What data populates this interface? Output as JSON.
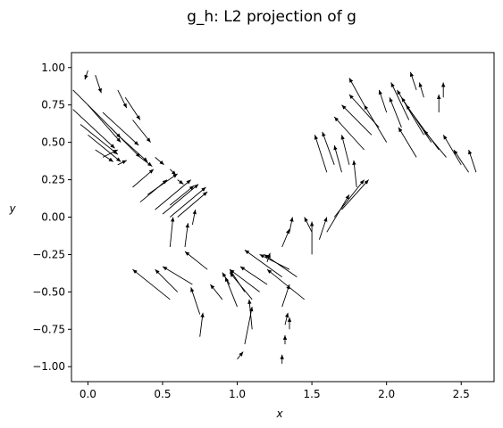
{
  "chart_data": {
    "type": "quiver",
    "title": "g_h: L2 projection of g",
    "xlabel": "x",
    "ylabel": "y",
    "xlim": [
      -0.11,
      2.72
    ],
    "ylim": [
      -1.1,
      1.1
    ],
    "xticks": [
      0.0,
      0.5,
      1.0,
      1.5,
      2.0,
      2.5
    ],
    "xtick_labels": [
      "0.0",
      "0.5",
      "1.0",
      "1.5",
      "2.0",
      "2.5"
    ],
    "yticks": [
      1.0,
      0.75,
      0.5,
      0.25,
      0.0,
      -0.25,
      -0.5,
      -0.75,
      -1.0
    ],
    "ytick_labels": [
      "1.00",
      "0.75",
      "0.50",
      "0.25",
      "0.00",
      "−0.25",
      "−0.50",
      "−0.75",
      "−1.00"
    ],
    "grid": false,
    "color": "#000000",
    "vectors": [
      {
        "x": 0.45,
        "y": 0.05,
        "u": 0.24,
        "v": 0.2
      },
      {
        "x": 0.5,
        "y": 0.02,
        "u": 0.24,
        "v": 0.2
      },
      {
        "x": 0.55,
        "y": 0.0,
        "u": 0.24,
        "v": 0.2
      },
      {
        "x": 0.6,
        "y": 0.0,
        "u": 0.2,
        "v": 0.17
      },
      {
        "x": 0.35,
        "y": 0.1,
        "u": 0.18,
        "v": 0.15
      },
      {
        "x": 0.4,
        "y": 0.15,
        "u": 0.2,
        "v": 0.14
      },
      {
        "x": 0.55,
        "y": 0.08,
        "u": 0.16,
        "v": 0.13
      },
      {
        "x": 0.3,
        "y": 0.2,
        "u": 0.14,
        "v": 0.12
      },
      {
        "x": 0.2,
        "y": 0.35,
        "u": 0.06,
        "v": 0.03
      },
      {
        "x": 0.1,
        "y": 0.4,
        "u": 0.1,
        "v": 0.05
      },
      {
        "x": -0.1,
        "y": 0.85,
        "u": 0.32,
        "v": -0.32
      },
      {
        "x": -0.1,
        "y": 0.72,
        "u": 0.28,
        "v": -0.26
      },
      {
        "x": -0.05,
        "y": 0.62,
        "u": 0.25,
        "v": -0.2
      },
      {
        "x": 0.0,
        "y": 0.55,
        "u": 0.22,
        "v": -0.18
      },
      {
        "x": 0.0,
        "y": 0.75,
        "u": 0.22,
        "v": -0.25
      },
      {
        "x": 0.1,
        "y": 0.7,
        "u": 0.24,
        "v": -0.22
      },
      {
        "x": 0.15,
        "y": 0.6,
        "u": 0.2,
        "v": -0.2
      },
      {
        "x": 0.2,
        "y": 0.55,
        "u": 0.2,
        "v": -0.18
      },
      {
        "x": 0.05,
        "y": 0.95,
        "u": 0.04,
        "v": -0.12
      },
      {
        "x": 0.0,
        "y": 0.98,
        "u": -0.02,
        "v": -0.06
      },
      {
        "x": 0.2,
        "y": 0.85,
        "u": 0.06,
        "v": -0.12
      },
      {
        "x": 0.25,
        "y": 0.8,
        "u": 0.1,
        "v": -0.15
      },
      {
        "x": 0.3,
        "y": 0.65,
        "u": 0.12,
        "v": -0.15
      },
      {
        "x": 0.05,
        "y": 0.45,
        "u": 0.12,
        "v": -0.08
      },
      {
        "x": 0.35,
        "y": 0.4,
        "u": 0.08,
        "v": -0.06
      },
      {
        "x": 0.45,
        "y": 0.4,
        "u": 0.06,
        "v": -0.05
      },
      {
        "x": 0.55,
        "y": 0.32,
        "u": 0.04,
        "v": -0.04
      },
      {
        "x": 0.6,
        "y": 0.25,
        "u": 0.04,
        "v": -0.03
      },
      {
        "x": 0.55,
        "y": -0.2,
        "u": 0.02,
        "v": 0.2
      },
      {
        "x": 0.65,
        "y": -0.2,
        "u": 0.02,
        "v": 0.16
      },
      {
        "x": 0.7,
        "y": -0.05,
        "u": 0.02,
        "v": 0.1
      },
      {
        "x": 0.55,
        "y": -0.55,
        "u": -0.25,
        "v": 0.2
      },
      {
        "x": 0.6,
        "y": -0.5,
        "u": -0.15,
        "v": 0.15
      },
      {
        "x": 0.7,
        "y": -0.45,
        "u": -0.2,
        "v": 0.12
      },
      {
        "x": 0.8,
        "y": -0.35,
        "u": -0.15,
        "v": 0.12
      },
      {
        "x": 0.75,
        "y": -0.65,
        "u": -0.06,
        "v": 0.18
      },
      {
        "x": 0.75,
        "y": -0.8,
        "u": 0.02,
        "v": 0.16
      },
      {
        "x": 0.9,
        "y": -0.55,
        "u": -0.08,
        "v": 0.1
      },
      {
        "x": 0.95,
        "y": -0.45,
        "u": -0.05,
        "v": 0.08
      },
      {
        "x": 1.0,
        "y": -0.6,
        "u": -0.08,
        "v": 0.2
      },
      {
        "x": 1.05,
        "y": -0.5,
        "u": -0.1,
        "v": 0.15
      },
      {
        "x": 1.1,
        "y": -0.55,
        "u": -0.15,
        "v": 0.18
      },
      {
        "x": 1.15,
        "y": -0.5,
        "u": -0.2,
        "v": 0.15
      },
      {
        "x": 1.2,
        "y": -0.45,
        "u": -0.18,
        "v": 0.12
      },
      {
        "x": 1.3,
        "y": -0.4,
        "u": -0.25,
        "v": 0.18
      },
      {
        "x": 1.35,
        "y": -0.35,
        "u": -0.2,
        "v": 0.1
      },
      {
        "x": 1.4,
        "y": -0.4,
        "u": -0.22,
        "v": 0.15
      },
      {
        "x": 1.45,
        "y": -0.55,
        "u": -0.25,
        "v": 0.2
      },
      {
        "x": 1.3,
        "y": -0.2,
        "u": 0.05,
        "v": 0.12
      },
      {
        "x": 1.35,
        "y": -0.1,
        "u": 0.02,
        "v": 0.1
      },
      {
        "x": 1.2,
        "y": -0.3,
        "u": 0.02,
        "v": 0.06
      },
      {
        "x": 1.0,
        "y": -0.95,
        "u": 0.04,
        "v": 0.05
      },
      {
        "x": 1.05,
        "y": -0.85,
        "u": 0.05,
        "v": 0.25
      },
      {
        "x": 1.1,
        "y": -0.75,
        "u": -0.02,
        "v": 0.2
      },
      {
        "x": 1.3,
        "y": -0.98,
        "u": 0.0,
        "v": 0.06
      },
      {
        "x": 1.32,
        "y": -0.85,
        "u": 0.0,
        "v": 0.06
      },
      {
        "x": 1.32,
        "y": -0.72,
        "u": 0.02,
        "v": 0.08
      },
      {
        "x": 1.3,
        "y": -0.6,
        "u": 0.05,
        "v": 0.15
      },
      {
        "x": 1.35,
        "y": -0.75,
        "u": 0.0,
        "v": 0.08
      },
      {
        "x": 1.5,
        "y": -0.1,
        "u": -0.05,
        "v": 0.1
      },
      {
        "x": 1.5,
        "y": -0.25,
        "u": 0.0,
        "v": 0.22
      },
      {
        "x": 1.55,
        "y": -0.15,
        "u": 0.05,
        "v": 0.15
      },
      {
        "x": 1.6,
        "y": -0.1,
        "u": 0.15,
        "v": 0.25
      },
      {
        "x": 1.65,
        "y": 0.0,
        "u": 0.2,
        "v": 0.25
      },
      {
        "x": 1.7,
        "y": 0.05,
        "u": 0.18,
        "v": 0.2
      },
      {
        "x": 1.6,
        "y": 0.3,
        "u": -0.08,
        "v": 0.25
      },
      {
        "x": 1.65,
        "y": 0.35,
        "u": -0.08,
        "v": 0.22
      },
      {
        "x": 1.7,
        "y": 0.3,
        "u": -0.05,
        "v": 0.18
      },
      {
        "x": 1.75,
        "y": 0.35,
        "u": -0.05,
        "v": 0.2
      },
      {
        "x": 1.85,
        "y": 0.45,
        "u": -0.2,
        "v": 0.22
      },
      {
        "x": 1.8,
        "y": 0.2,
        "u": -0.02,
        "v": 0.18
      },
      {
        "x": 1.9,
        "y": 0.55,
        "u": -0.2,
        "v": 0.2
      },
      {
        "x": 1.95,
        "y": 0.6,
        "u": -0.2,
        "v": 0.22
      },
      {
        "x": 2.0,
        "y": 0.5,
        "u": -0.15,
        "v": 0.25
      },
      {
        "x": 1.85,
        "y": 0.75,
        "u": -0.1,
        "v": 0.18
      },
      {
        "x": 2.0,
        "y": 0.7,
        "u": -0.05,
        "v": 0.15
      },
      {
        "x": 2.1,
        "y": 0.6,
        "u": -0.08,
        "v": 0.2
      },
      {
        "x": 2.15,
        "y": 0.65,
        "u": -0.12,
        "v": 0.25
      },
      {
        "x": 2.25,
        "y": 0.55,
        "u": -0.18,
        "v": 0.3
      },
      {
        "x": 2.3,
        "y": 0.5,
        "u": -0.2,
        "v": 0.3
      },
      {
        "x": 2.35,
        "y": 0.45,
        "u": -0.22,
        "v": 0.3
      },
      {
        "x": 2.2,
        "y": 0.4,
        "u": -0.12,
        "v": 0.2
      },
      {
        "x": 2.4,
        "y": 0.4,
        "u": -0.15,
        "v": 0.18
      },
      {
        "x": 2.5,
        "y": 0.35,
        "u": -0.12,
        "v": 0.2
      },
      {
        "x": 2.55,
        "y": 0.3,
        "u": -0.1,
        "v": 0.15
      },
      {
        "x": 2.6,
        "y": 0.3,
        "u": -0.05,
        "v": 0.15
      },
      {
        "x": 2.2,
        "y": 0.85,
        "u": -0.04,
        "v": 0.12
      },
      {
        "x": 2.25,
        "y": 0.8,
        "u": -0.03,
        "v": 0.1
      },
      {
        "x": 2.35,
        "y": 0.7,
        "u": 0.0,
        "v": 0.12
      },
      {
        "x": 2.38,
        "y": 0.8,
        "u": 0.0,
        "v": 0.1
      }
    ]
  }
}
